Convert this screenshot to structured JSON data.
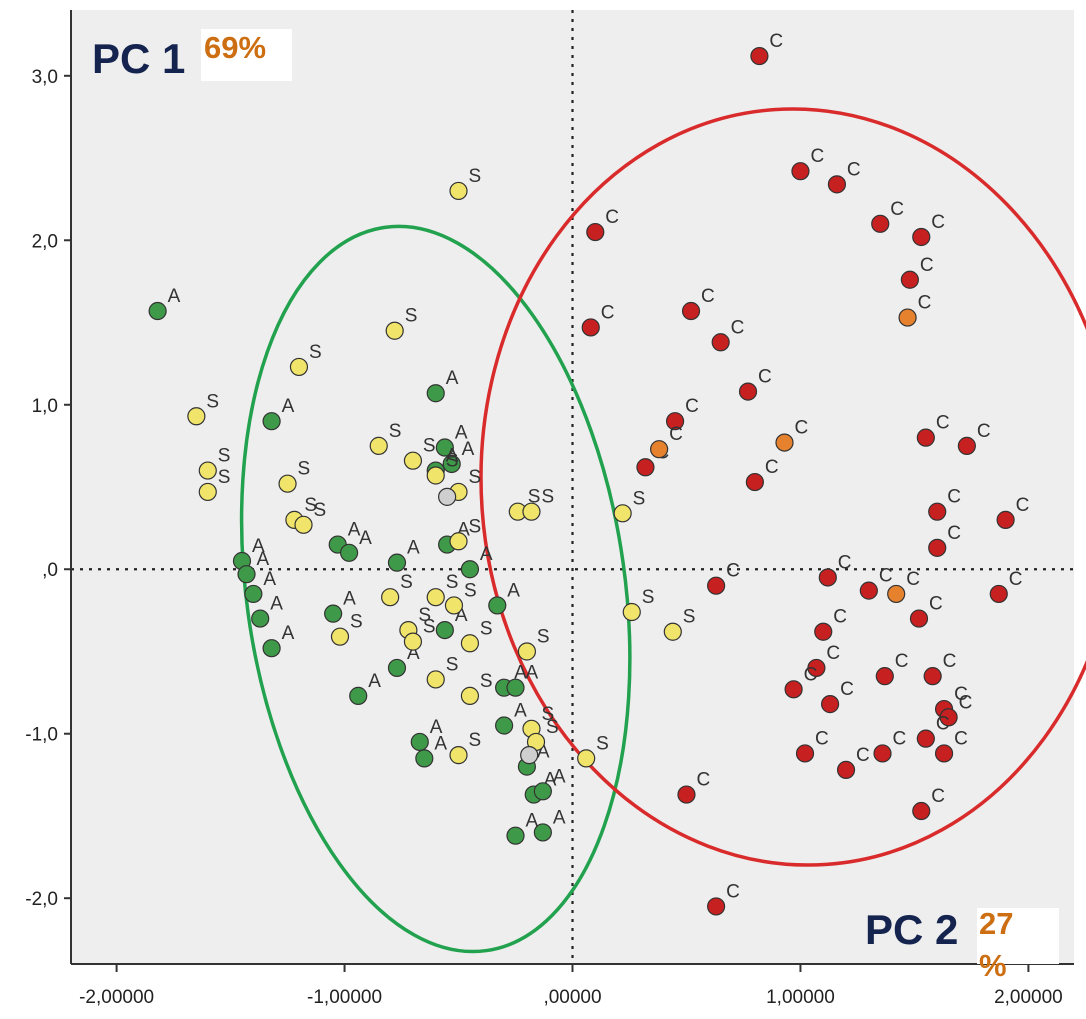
{
  "chart_data": {
    "type": "scatter",
    "xlim": [
      -2.2,
      2.2
    ],
    "ylim": [
      -2.4,
      3.4
    ],
    "x_ticks": [
      "-2,00000",
      "-1,00000",
      ",00000",
      "1,00000",
      "2,00000"
    ],
    "x_tick_values": [
      -2,
      -1,
      0,
      1,
      2
    ],
    "y_ticks": [
      "3,0",
      "2,0",
      "1,0",
      ",0",
      "-1,0",
      "-2,0"
    ],
    "y_tick_values": [
      3,
      2,
      1,
      0,
      -1,
      -2
    ],
    "grid": false,
    "reference_lines": {
      "x": 0,
      "y": 0,
      "style": "dotted"
    },
    "annotations": [
      {
        "text": "PC 1",
        "color": "#14244e"
      },
      {
        "text": "69%",
        "color": "#cc6e11"
      },
      {
        "text": "PC 2",
        "color": "#14244e"
      },
      {
        "text": "27",
        "color": "#cc6e11"
      },
      {
        "text": "%",
        "color": "#cc6e11"
      }
    ],
    "ellipses": [
      {
        "color": "#22a24e",
        "cx": -0.6,
        "cy": -0.12,
        "rx": 0.83,
        "ry": 2.22,
        "rotation_deg": -8
      },
      {
        "color": "#d92b2b",
        "cx": 1.0,
        "cy": 0.5,
        "rx": 1.4,
        "ry": 2.3,
        "rotation_deg": -4
      }
    ],
    "series": [
      {
        "label": "A",
        "color": "#3e9a48",
        "points": [
          [
            -1.82,
            1.57
          ],
          [
            -1.32,
            0.9
          ],
          [
            -0.6,
            1.07
          ],
          [
            -0.56,
            0.74
          ],
          [
            -0.53,
            0.64
          ],
          [
            -0.6,
            0.6
          ],
          [
            -1.45,
            0.05
          ],
          [
            -1.43,
            -0.03
          ],
          [
            -1.4,
            -0.15
          ],
          [
            -1.37,
            -0.3
          ],
          [
            -1.32,
            -0.48
          ],
          [
            -1.05,
            -0.27
          ],
          [
            -1.03,
            0.15
          ],
          [
            -0.98,
            0.1
          ],
          [
            -0.77,
            0.04
          ],
          [
            -0.55,
            0.15
          ],
          [
            -0.45,
            0.0
          ],
          [
            -0.33,
            -0.22
          ],
          [
            -0.77,
            -0.6
          ],
          [
            -0.94,
            -0.77
          ],
          [
            -0.56,
            -0.37
          ],
          [
            -0.3,
            -0.72
          ],
          [
            -0.25,
            -0.72
          ],
          [
            -0.3,
            -0.95
          ],
          [
            -0.67,
            -1.05
          ],
          [
            -0.65,
            -1.15
          ],
          [
            -0.2,
            -1.2
          ],
          [
            -0.17,
            -1.37
          ],
          [
            -0.13,
            -1.35
          ],
          [
            -0.25,
            -1.62
          ],
          [
            -0.13,
            -1.6
          ]
        ]
      },
      {
        "label": "S",
        "color": "#f0e46a",
        "points": [
          [
            -0.5,
            2.3
          ],
          [
            -0.78,
            1.45
          ],
          [
            -1.2,
            1.23
          ],
          [
            -1.65,
            0.93
          ],
          [
            -1.6,
            0.6
          ],
          [
            -1.6,
            0.47
          ],
          [
            -1.25,
            0.52
          ],
          [
            -1.22,
            0.3
          ],
          [
            -1.18,
            0.27
          ],
          [
            -0.85,
            0.75
          ],
          [
            -0.7,
            0.66
          ],
          [
            -0.6,
            0.57
          ],
          [
            -0.5,
            0.47
          ],
          [
            -0.5,
            0.17
          ],
          [
            -0.24,
            0.35
          ],
          [
            -0.18,
            0.35
          ],
          [
            0.22,
            0.34
          ],
          [
            0.26,
            -0.26
          ],
          [
            0.44,
            -0.38
          ],
          [
            -0.8,
            -0.17
          ],
          [
            -0.72,
            -0.37
          ],
          [
            -0.7,
            -0.44
          ],
          [
            -0.6,
            -0.17
          ],
          [
            -0.52,
            -0.22
          ],
          [
            -0.45,
            -0.45
          ],
          [
            -1.02,
            -0.41
          ],
          [
            -0.6,
            -0.67
          ],
          [
            -0.45,
            -0.77
          ],
          [
            -0.2,
            -0.5
          ],
          [
            -0.18,
            -0.97
          ],
          [
            -0.16,
            -1.05
          ],
          [
            -0.5,
            -1.13
          ],
          [
            0.06,
            -1.15
          ]
        ]
      },
      {
        "label": "C",
        "color": "#c62020",
        "points": [
          [
            0.82,
            3.12
          ],
          [
            0.1,
            2.05
          ],
          [
            0.08,
            1.47
          ],
          [
            0.52,
            1.57
          ],
          [
            0.65,
            1.38
          ],
          [
            0.45,
            0.9
          ],
          [
            0.32,
            0.62
          ],
          [
            0.77,
            1.08
          ],
          [
            0.8,
            0.53
          ],
          [
            0.63,
            -0.1
          ],
          [
            0.5,
            -1.37
          ],
          [
            0.63,
            -2.05
          ],
          [
            1.0,
            2.42
          ],
          [
            1.16,
            2.34
          ],
          [
            1.35,
            2.1
          ],
          [
            1.53,
            2.02
          ],
          [
            1.48,
            1.76
          ],
          [
            1.55,
            0.8
          ],
          [
            1.73,
            0.75
          ],
          [
            1.6,
            0.35
          ],
          [
            1.6,
            0.13
          ],
          [
            1.9,
            0.3
          ],
          [
            1.87,
            -0.15
          ],
          [
            1.12,
            -0.05
          ],
          [
            1.3,
            -0.13
          ],
          [
            1.1,
            -0.38
          ],
          [
            1.52,
            -0.3
          ],
          [
            1.07,
            -0.6
          ],
          [
            0.97,
            -0.73
          ],
          [
            1.13,
            -0.82
          ],
          [
            1.37,
            -0.65
          ],
          [
            1.58,
            -0.65
          ],
          [
            1.63,
            -0.85
          ],
          [
            1.65,
            -0.9
          ],
          [
            1.55,
            -1.03
          ],
          [
            1.63,
            -1.12
          ],
          [
            1.02,
            -1.12
          ],
          [
            1.2,
            -1.22
          ],
          [
            1.36,
            -1.12
          ],
          [
            1.53,
            -1.47
          ]
        ]
      },
      {
        "label": "C",
        "color": "#e6822e",
        "points": [
          [
            1.47,
            1.53
          ],
          [
            0.38,
            0.73
          ],
          [
            0.93,
            0.77
          ],
          [
            1.42,
            -0.15
          ]
        ]
      },
      {
        "label": "",
        "color": "#cfcfcf",
        "points": [
          [
            -0.55,
            0.44
          ],
          [
            -0.19,
            -1.13
          ]
        ]
      }
    ]
  }
}
